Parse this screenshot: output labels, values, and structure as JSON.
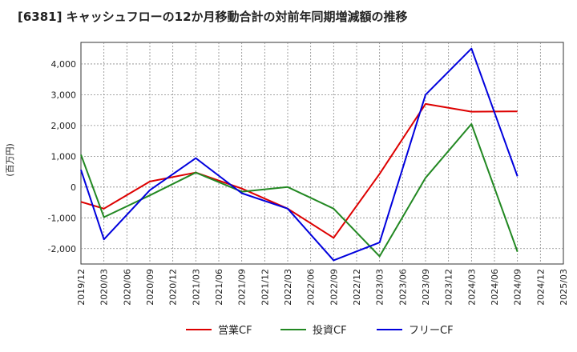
{
  "chart_data": {
    "type": "line",
    "title": "[6381]  キャッシュフローの12か月移動合計の対前年同期増減額の推移",
    "ylabel": "(百万円)",
    "xlabel": "",
    "ylim": [
      -2500,
      4700
    ],
    "yticks": [
      -2000,
      -1000,
      0,
      1000,
      2000,
      3000,
      4000
    ],
    "ytick_labels": [
      "-2,000",
      "-1,000",
      "0",
      "1,000",
      "2,000",
      "3,000",
      "4,000"
    ],
    "x_categories": [
      "2019/12",
      "2020/03",
      "2020/06",
      "2020/09",
      "2020/12",
      "2021/03",
      "2021/06",
      "2021/09",
      "2021/12",
      "2022/03",
      "2022/06",
      "2022/09",
      "2022/12",
      "2023/03",
      "2023/06",
      "2023/09",
      "2023/12",
      "2024/03",
      "2024/06",
      "2024/09",
      "2024/12",
      "2025/03"
    ],
    "grid": true,
    "legend_position": "bottom",
    "series": [
      {
        "name": "営業CF",
        "color": "#dd0000",
        "points": [
          [
            0,
            -480
          ],
          [
            1,
            -700
          ],
          [
            3,
            180
          ],
          [
            5,
            470
          ],
          [
            7,
            -50
          ],
          [
            9,
            -700
          ],
          [
            11,
            -1650
          ],
          [
            13,
            430
          ],
          [
            15,
            2700
          ],
          [
            17,
            2450
          ],
          [
            19,
            2460
          ]
        ]
      },
      {
        "name": "投資CF",
        "color": "#228822",
        "points": [
          [
            0,
            1050
          ],
          [
            1,
            -980
          ],
          [
            3,
            -270
          ],
          [
            5,
            470
          ],
          [
            7,
            -150
          ],
          [
            9,
            0
          ],
          [
            11,
            -700
          ],
          [
            13,
            -2250
          ],
          [
            15,
            300
          ],
          [
            17,
            2050
          ],
          [
            19,
            -2100
          ]
        ]
      },
      {
        "name": "フリーCF",
        "color": "#0000dd",
        "points": [
          [
            0,
            560
          ],
          [
            1,
            -1700
          ],
          [
            3,
            -100
          ],
          [
            5,
            940
          ],
          [
            7,
            -200
          ],
          [
            9,
            -700
          ],
          [
            11,
            -2380
          ],
          [
            13,
            -1800
          ],
          [
            15,
            3000
          ],
          [
            17,
            4500
          ],
          [
            19,
            350
          ]
        ]
      }
    ]
  }
}
